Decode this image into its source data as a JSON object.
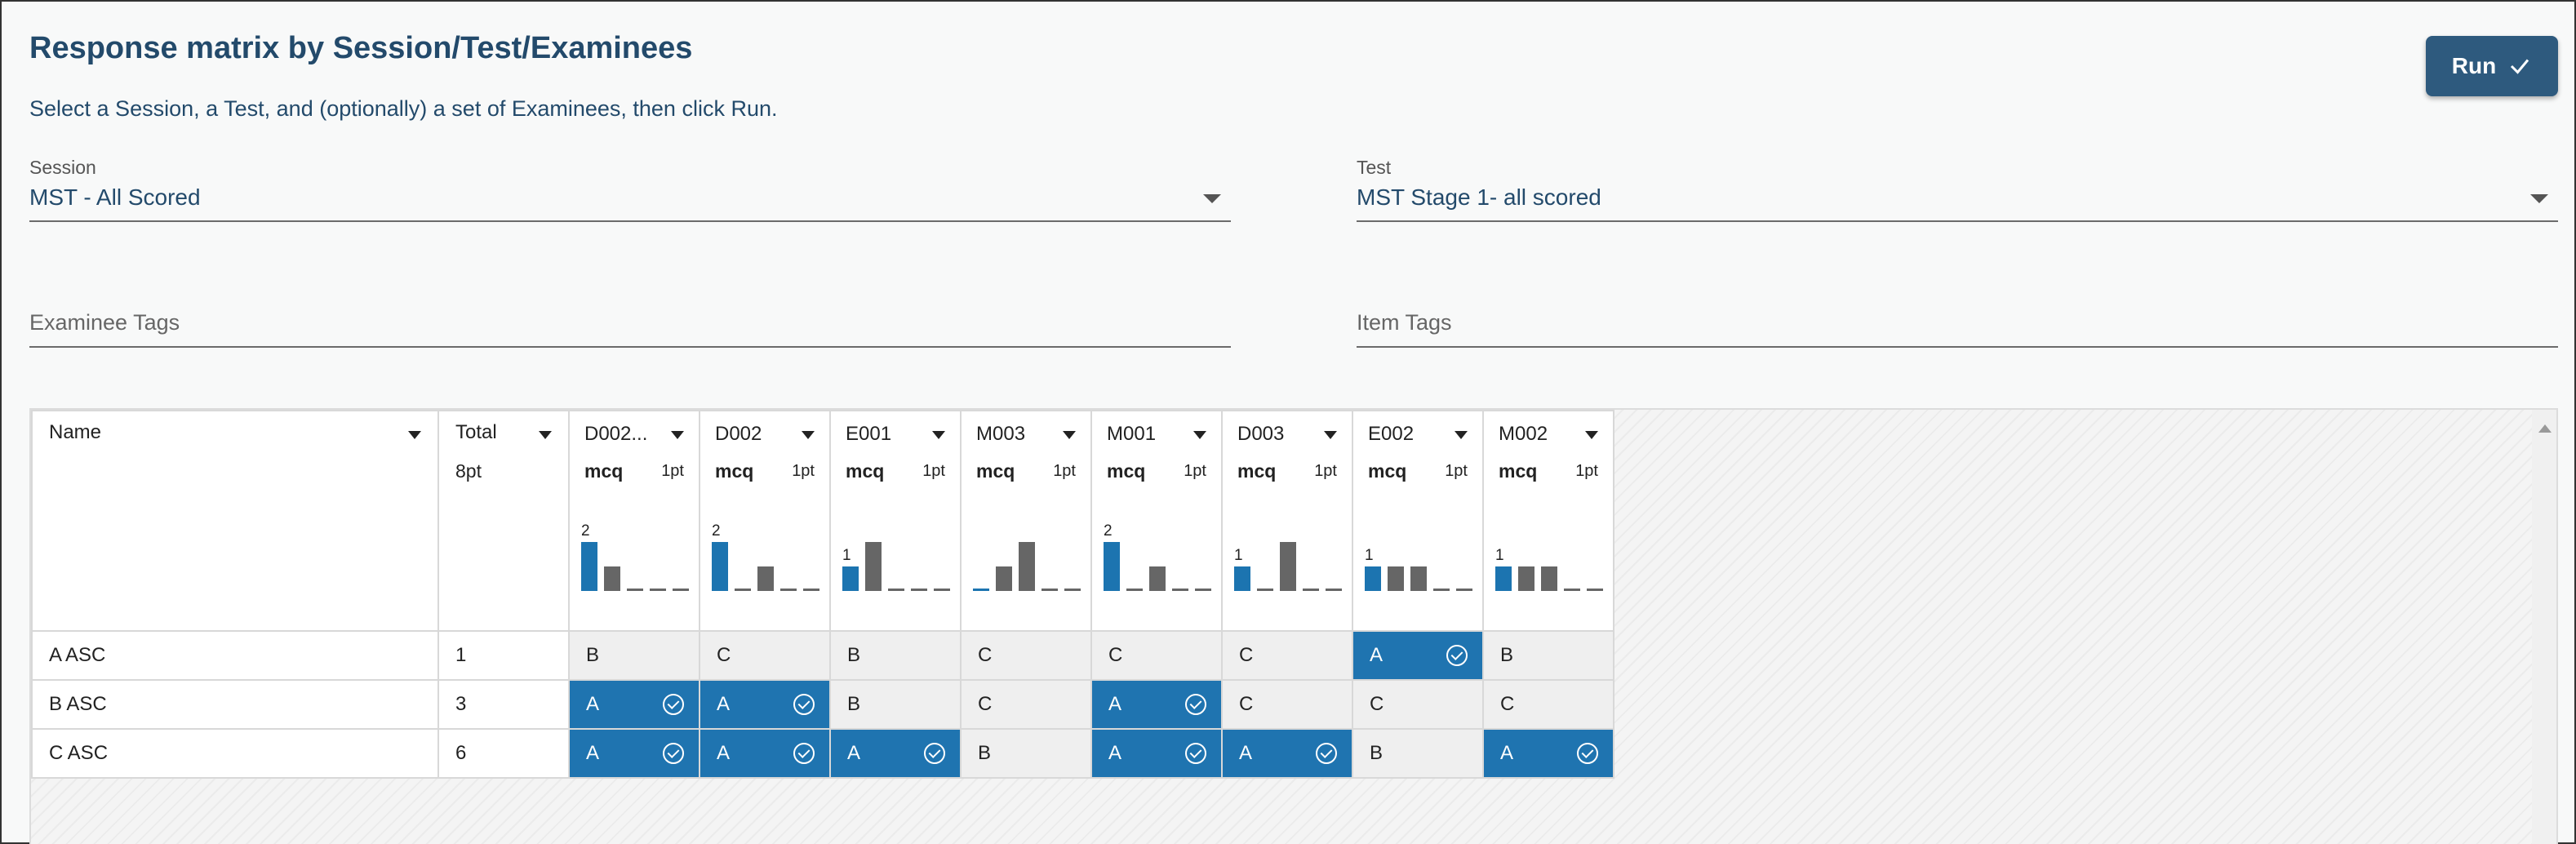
{
  "page": {
    "title": "Response matrix by Session/Test/Examinees",
    "subtitle": "Select a Session, a Test, and (optionally) a set of Examinees, then click Run.",
    "run_label": "Run"
  },
  "session": {
    "label": "Session",
    "value": "MST - All Scored"
  },
  "test": {
    "label": "Test",
    "value": "MST Stage 1- all scored"
  },
  "examinee_tags": {
    "placeholder": "Examinee Tags"
  },
  "item_tags": {
    "placeholder": "Item Tags"
  },
  "grid": {
    "name_header": "Name",
    "total_header": "Total",
    "total_points": "8pt",
    "items": [
      {
        "id": "D002...",
        "type": "mcq",
        "pts": "1pt",
        "label": "2",
        "hist": [
          2,
          1,
          0,
          0,
          0
        ],
        "correct_index": 0
      },
      {
        "id": "D002",
        "type": "mcq",
        "pts": "1pt",
        "label": "2",
        "hist": [
          2,
          0,
          1,
          0,
          0
        ],
        "correct_index": 0
      },
      {
        "id": "E001",
        "type": "mcq",
        "pts": "1pt",
        "label": "1",
        "hist": [
          1,
          2,
          0,
          0,
          0
        ],
        "correct_index": 0
      },
      {
        "id": "M003",
        "type": "mcq",
        "pts": "1pt",
        "label": "",
        "hist": [
          0,
          1,
          2,
          0,
          0
        ],
        "correct_index": 0
      },
      {
        "id": "M001",
        "type": "mcq",
        "pts": "1pt",
        "label": "2",
        "hist": [
          2,
          0,
          1,
          0,
          0
        ],
        "correct_index": 0
      },
      {
        "id": "D003",
        "type": "mcq",
        "pts": "1pt",
        "label": "1",
        "hist": [
          1,
          0,
          2,
          0,
          0
        ],
        "correct_index": 0
      },
      {
        "id": "E002",
        "type": "mcq",
        "pts": "1pt",
        "label": "1",
        "hist": [
          1,
          1,
          1,
          0,
          0
        ],
        "correct_index": 0
      },
      {
        "id": "M002",
        "type": "mcq",
        "pts": "1pt",
        "label": "1",
        "hist": [
          1,
          1,
          1,
          0,
          0
        ],
        "correct_index": 0
      }
    ],
    "rows": [
      {
        "name": "A ASC",
        "total": "1",
        "responses": [
          {
            "v": "B",
            "c": false
          },
          {
            "v": "C",
            "c": false
          },
          {
            "v": "B",
            "c": false
          },
          {
            "v": "C",
            "c": false
          },
          {
            "v": "C",
            "c": false
          },
          {
            "v": "C",
            "c": false
          },
          {
            "v": "A",
            "c": true
          },
          {
            "v": "B",
            "c": false
          }
        ]
      },
      {
        "name": "B ASC",
        "total": "3",
        "responses": [
          {
            "v": "A",
            "c": true
          },
          {
            "v": "A",
            "c": true
          },
          {
            "v": "B",
            "c": false
          },
          {
            "v": "C",
            "c": false
          },
          {
            "v": "A",
            "c": true
          },
          {
            "v": "C",
            "c": false
          },
          {
            "v": "C",
            "c": false
          },
          {
            "v": "C",
            "c": false
          }
        ]
      },
      {
        "name": "C ASC",
        "total": "6",
        "responses": [
          {
            "v": "A",
            "c": true
          },
          {
            "v": "A",
            "c": true
          },
          {
            "v": "A",
            "c": true
          },
          {
            "v": "B",
            "c": false
          },
          {
            "v": "A",
            "c": true
          },
          {
            "v": "A",
            "c": true
          },
          {
            "v": "B",
            "c": false
          },
          {
            "v": "A",
            "c": true
          }
        ]
      }
    ]
  }
}
